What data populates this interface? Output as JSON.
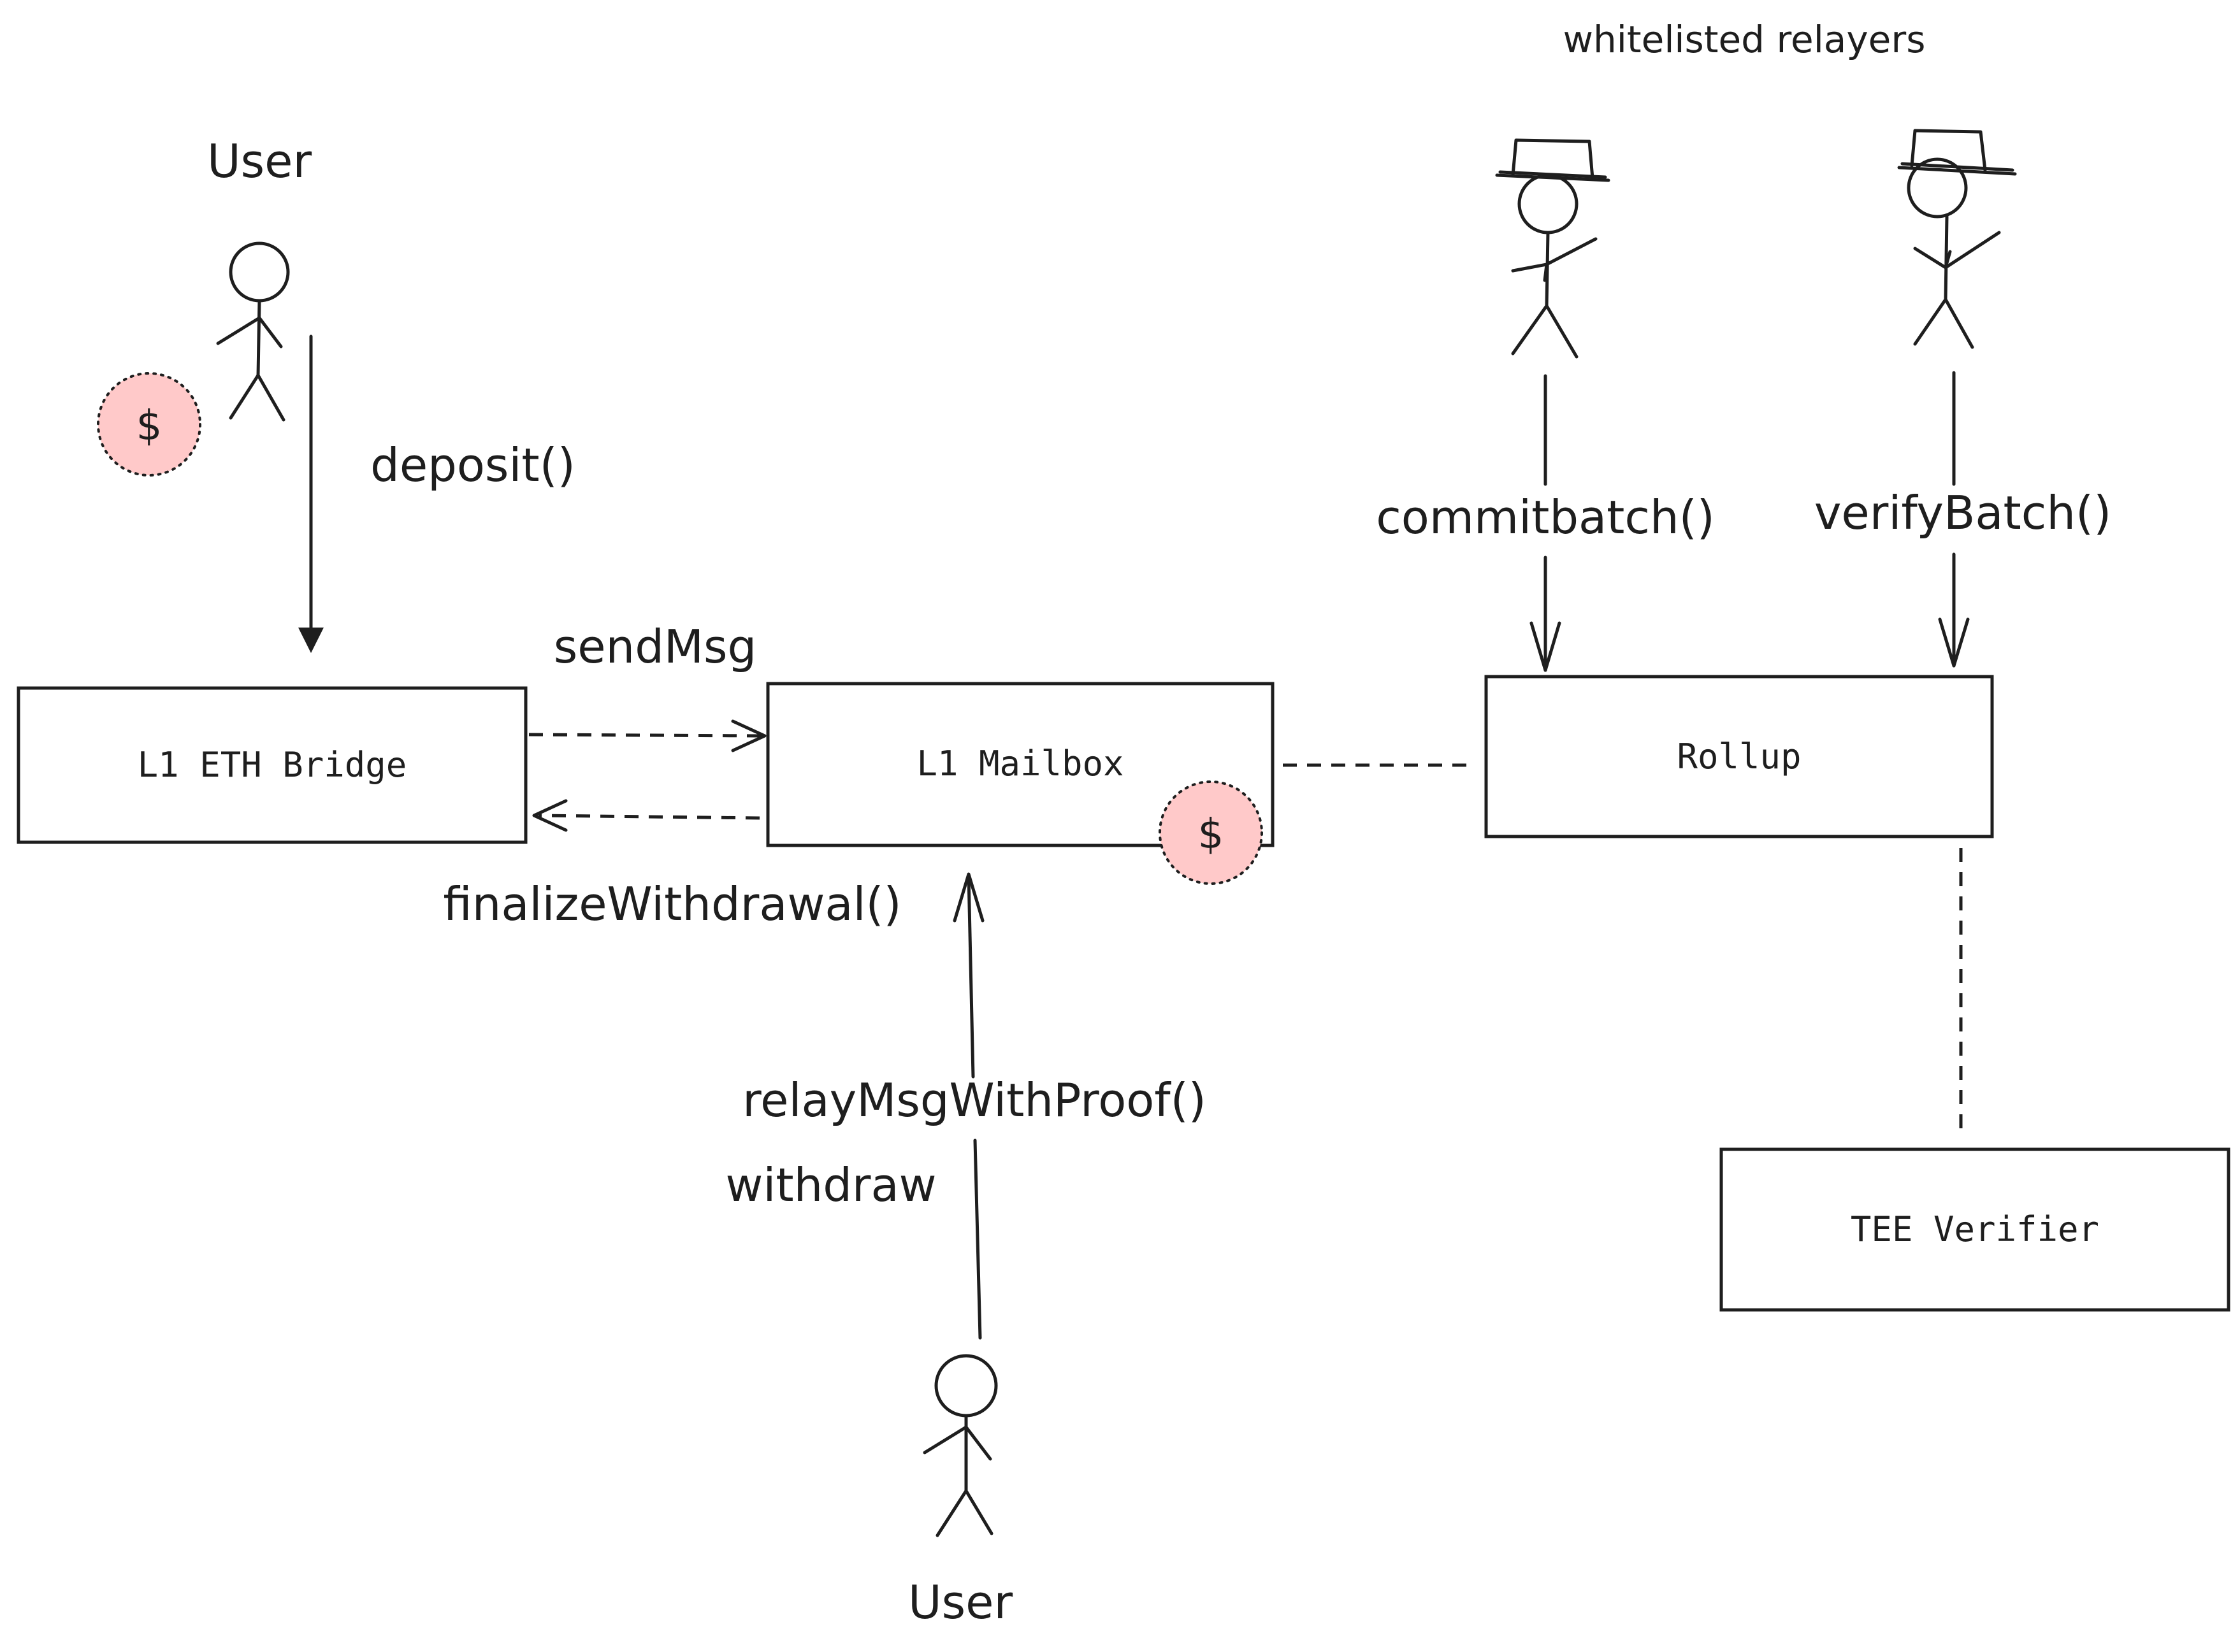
{
  "labels": {
    "relayers_title": "whitelisted relayers",
    "user_top": "User",
    "user_bottom": "User",
    "deposit": "deposit()",
    "send_msg": "sendMsg",
    "finalize_withdrawal": "finalizeWithdrawal()",
    "commit_batch": "commitbatch()",
    "verify_batch": "verifyBatch()",
    "relay_msg": "relayMsgWithProof()",
    "withdraw": "withdraw"
  },
  "boxes": {
    "bridge": "L1 ETH Bridge",
    "mailbox": "L1 Mailbox",
    "rollup": "Rollup",
    "tee": "TEE Verifier"
  },
  "coins": {
    "symbol": "$",
    "fill_color": "#ffc9c9"
  },
  "icons": [
    "stick-figure-user",
    "stick-figure-relayer-with-hat",
    "dollar-coin"
  ]
}
